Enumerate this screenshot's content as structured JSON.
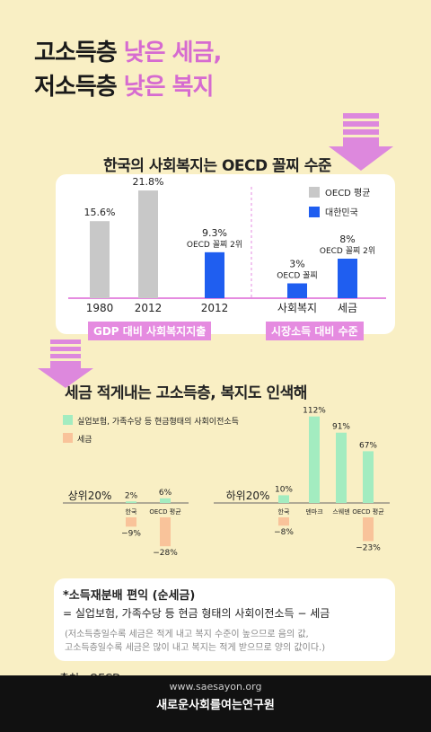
{
  "headline": {
    "line1_dark": "고소득층",
    "line1_pink": "낮은 세금,",
    "line2_dark": "저소득층",
    "line2_pink": "낮은 복지"
  },
  "section1": {
    "title": "한국의 사회복지는 OECD 꼴찌 수준",
    "left_caption": "GDP 대비 사회복지지출",
    "right_caption": "시장소득 대비 수준"
  },
  "section2": {
    "title": "세금 적게내는 고소득층, 복지도 인색해"
  },
  "note": {
    "title": "*소득재분배 편익 (순세금)",
    "formula": "= 실업보험, 가족수당 등 현금 형태의 사회이전소득 − 세금",
    "explain_line1": "(저소득층일수록 세금은 적게 내고 복지 수준이 높으므로 음의 값,",
    "explain_line2": "고소득층일수록 세금은 많이 내고 복지는 적게 받으므로 양의 값이다.)"
  },
  "source": "출처 : OECD",
  "footer": {
    "url": "www.saesayon.org",
    "org": "새로운사회를여는연구원"
  },
  "colors": {
    "background": "#f9efc4",
    "pink": "#d66bd0",
    "arrow_pink": "#dd88dd",
    "gray_bar": "#c8c8c8",
    "blue_bar": "#1f5ef0",
    "green_bar": "#a3ecc0",
    "peach_bar": "#f9c39a"
  },
  "chart_data": [
    {
      "type": "bar",
      "legend": [
        {
          "name": "OECD 평균",
          "color": "#c8c8c8"
        },
        {
          "name": "대한민국",
          "color": "#1f5ef0"
        }
      ],
      "legend_position": "top-right",
      "groups": [
        {
          "caption": "GDP 대비 사회복지지출",
          "bars": [
            {
              "category": "1980",
              "value": 15.6,
              "label": "15.6%",
              "series": "OECD 평균"
            },
            {
              "category": "2012",
              "value": 21.8,
              "label": "21.8%",
              "series": "OECD 평균"
            },
            {
              "category": "2012",
              "value": 9.3,
              "label": "9.3%",
              "note": "OECD 꼴찌 2위",
              "series": "대한민국"
            }
          ]
        },
        {
          "caption": "시장소득 대비 수준",
          "bars": [
            {
              "category": "사회복지",
              "value": 3,
              "label": "3%",
              "note": "OECD 꼴찌",
              "series": "대한민국"
            },
            {
              "category": "세금",
              "value": 8,
              "label": "8%",
              "note": "OECD 꼴찌 2위",
              "series": "대한민국"
            }
          ]
        }
      ]
    },
    {
      "type": "bar",
      "legend": [
        {
          "name": "실업보험, 가족수당 등 현금형태의 사회이전소득",
          "color": "#a3ecc0"
        },
        {
          "name": "세금",
          "color": "#f9c39a"
        }
      ],
      "legend_position": "top-left",
      "panels": [
        {
          "name": "상위20%",
          "categories": [
            "한국",
            "OECD 평균"
          ],
          "transfer": [
            2,
            6
          ],
          "tax": [
            -9,
            -28
          ],
          "transfer_labels": [
            "2%",
            "6%"
          ],
          "tax_labels": [
            "−9%",
            "−28%"
          ]
        },
        {
          "name": "하위20%",
          "categories": [
            "한국",
            "덴마크",
            "스웨덴",
            "OECD 평균"
          ],
          "transfer": [
            10,
            112,
            91,
            67
          ],
          "tax": [
            -8,
            null,
            null,
            -23
          ],
          "transfer_labels": [
            "10%",
            "112%",
            "91%",
            "67%"
          ],
          "tax_labels": [
            "−8%",
            "",
            "",
            "−23%"
          ]
        }
      ]
    }
  ]
}
